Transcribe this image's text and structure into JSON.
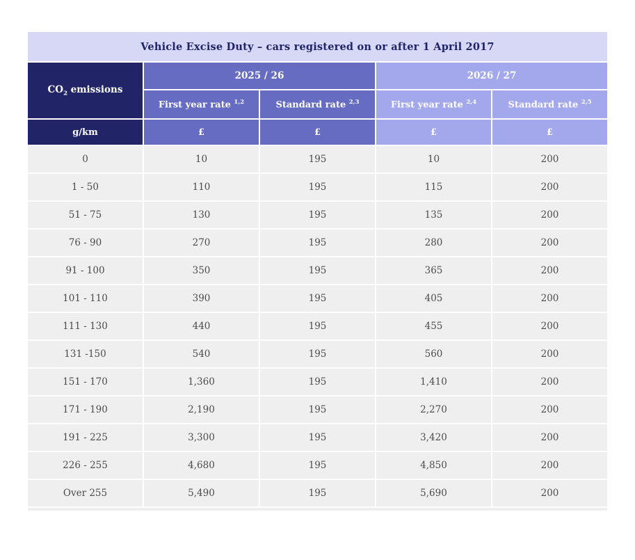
{
  "table": {
    "title": "Vehicle Excise Duty – cars registered on or after 1 April 2017",
    "corner_header": {
      "prefix": "CO",
      "subscript": "2",
      "suffix": " emissions"
    },
    "year_groups": [
      {
        "label": "2025 / 26"
      },
      {
        "label": "2026 / 27"
      }
    ],
    "sub_headers": [
      {
        "label": "First year rate",
        "superscript": "1,2"
      },
      {
        "label": "Standard rate",
        "superscript": "2,3"
      },
      {
        "label": "First year rate",
        "superscript": "2,4"
      },
      {
        "label": "Standard rate",
        "superscript": "2,5"
      }
    ],
    "units_row": {
      "emissions_unit": "g/km",
      "currency": [
        "£",
        "£",
        "£",
        "£"
      ]
    },
    "rows": [
      {
        "emissions": "0",
        "values": [
          "10",
          "195",
          "10",
          "200"
        ]
      },
      {
        "emissions": "1 - 50",
        "values": [
          "110",
          "195",
          "115",
          "200"
        ]
      },
      {
        "emissions": "51 - 75",
        "values": [
          "130",
          "195",
          "135",
          "200"
        ]
      },
      {
        "emissions": "76 - 90",
        "values": [
          "270",
          "195",
          "280",
          "200"
        ]
      },
      {
        "emissions": "91 - 100",
        "values": [
          "350",
          "195",
          "365",
          "200"
        ]
      },
      {
        "emissions": "101 - 110",
        "values": [
          "390",
          "195",
          "405",
          "200"
        ]
      },
      {
        "emissions": "111 - 130",
        "values": [
          "440",
          "195",
          "455",
          "200"
        ]
      },
      {
        "emissions": "131 -150",
        "values": [
          "540",
          "195",
          "560",
          "200"
        ]
      },
      {
        "emissions": "151 - 170",
        "values": [
          "1,360",
          "195",
          "1,410",
          "200"
        ]
      },
      {
        "emissions": "171 - 190",
        "values": [
          "2,190",
          "195",
          "2,270",
          "200"
        ]
      },
      {
        "emissions": "191 - 225",
        "values": [
          "3,300",
          "195",
          "3,420",
          "200"
        ]
      },
      {
        "emissions": "226 - 255",
        "values": [
          "4,680",
          "195",
          "4,850",
          "200"
        ]
      },
      {
        "emissions": "Over 255",
        "values": [
          "5,490",
          "195",
          "5,690",
          "200"
        ]
      }
    ]
  },
  "colors": {
    "title_background": "#d7d7f6",
    "navy": "#212568",
    "medium_purple": "#656cc1",
    "light_purple": "#a3a8ed",
    "row_background": "#efefef",
    "data_text": "#4b4b4b",
    "header_text": "#ffffff"
  }
}
